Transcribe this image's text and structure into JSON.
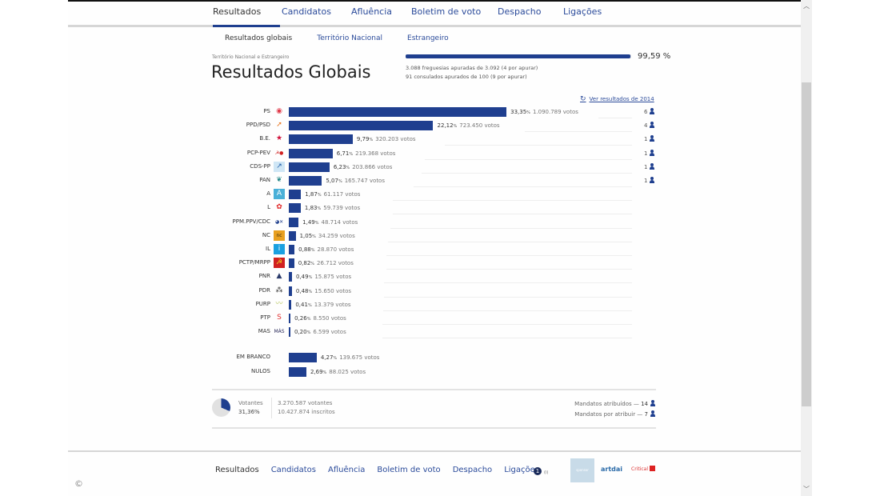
{
  "nav": {
    "tabs": [
      {
        "label": "Resultados",
        "active": true
      },
      {
        "label": "Candidatos"
      },
      {
        "label": "Afluência"
      },
      {
        "label": "Boletim de voto"
      },
      {
        "label": "Despacho"
      },
      {
        "label": "Ligações"
      }
    ]
  },
  "subnav": {
    "items": [
      {
        "label": "Resultados globais",
        "active": true
      },
      {
        "label": "Território Nacional"
      },
      {
        "label": "Estrangeiro"
      }
    ]
  },
  "header": {
    "region": "Território Nacional e Estrangeiro",
    "title": "Resultados Globais",
    "progress_pct": "99,59 %",
    "progress_value": 99.59,
    "freguesias": "3.088 freguesias apuradas de 3.092 (4 por apurar)",
    "consulados": "91 consulados apurados de 100 (9 por apurar)",
    "ver_link": "Ver resultados de 2014",
    "history_icon": "↻"
  },
  "chart_data": {
    "type": "bar",
    "title": "Resultados Globais",
    "orientation": "horizontal",
    "categories": [
      "PS",
      "PPD/PSD",
      "B.E.",
      "PCP-PEV",
      "CDS-PP",
      "PAN",
      "A",
      "L",
      "PPM.PPV/CDC",
      "NC",
      "IL",
      "PCTP/MRPP",
      "PNR",
      "PDR",
      "PURP",
      "PTP",
      "MAS",
      "EM BRANCO",
      "NULOS"
    ],
    "series": [
      {
        "name": "Percentagem (%)",
        "values": [
          33.35,
          22.12,
          9.79,
          6.71,
          6.23,
          5.07,
          1.87,
          1.83,
          1.49,
          1.05,
          0.88,
          0.82,
          0.49,
          0.48,
          0.41,
          0.26,
          0.2,
          4.27,
          2.69
        ]
      },
      {
        "name": "Votos",
        "values": [
          1090789,
          723450,
          320203,
          219368,
          203866,
          165747,
          61117,
          59739,
          48714,
          34259,
          28870,
          26712,
          15875,
          15650,
          13379,
          8550,
          6599,
          139675,
          88025
        ]
      },
      {
        "name": "Mandatos",
        "values": [
          6,
          4,
          1,
          1,
          1,
          1,
          null,
          null,
          null,
          null,
          null,
          null,
          null,
          null,
          null,
          null,
          null,
          null,
          null
        ]
      }
    ],
    "xlabel": "",
    "ylabel": ""
  },
  "parties": [
    {
      "name": "PS",
      "pct": "33,35",
      "votes": "1.090.789 votos",
      "value": 33.35,
      "seats": "6",
      "logo": "◉",
      "logo_color": "#e03a4a",
      "logo_bg": "transparent"
    },
    {
      "name": "PPD/PSD",
      "pct": "22,12",
      "votes": "723.450 votos",
      "value": 22.12,
      "seats": "4",
      "logo": "➚",
      "logo_color": "#e8731a",
      "logo_bg": "transparent"
    },
    {
      "name": "B.E.",
      "pct": "9,79",
      "votes": "320.203 votos",
      "value": 9.79,
      "seats": "1",
      "logo": "★",
      "logo_color": "#d0103a",
      "logo_bg": "transparent"
    },
    {
      "name": "PCP-PEV",
      "pct": "6,71",
      "votes": "219.368 votos",
      "value": 6.71,
      "seats": "1",
      "logo": "☭●",
      "logo_color": "#d02020",
      "logo_bg": "transparent"
    },
    {
      "name": "CDS-PP",
      "pct": "6,23",
      "votes": "203.866 votos",
      "value": 6.23,
      "seats": "1",
      "logo": "↗",
      "logo_color": "#1a5aa8",
      "logo_bg": "#cfe6f5"
    },
    {
      "name": "PAN",
      "pct": "5,07",
      "votes": "165.747 votos",
      "value": 5.07,
      "seats": "1",
      "logo": "❦",
      "logo_color": "#2a8a8a",
      "logo_bg": "transparent"
    },
    {
      "name": "A",
      "pct": "1,87",
      "votes": "61.117 votos",
      "value": 1.87,
      "seats": "",
      "logo": "A",
      "logo_color": "#ffffff",
      "logo_bg": "#4ab0d8"
    },
    {
      "name": "L",
      "pct": "1,83",
      "votes": "59.739 votos",
      "value": 1.83,
      "seats": "",
      "logo": "✿",
      "logo_color": "#e02020",
      "logo_bg": "transparent"
    },
    {
      "name": "PPM.PPV/CDC",
      "pct": "1,49",
      "votes": "48.714 votos",
      "value": 1.49,
      "seats": "",
      "logo": "◕✕",
      "logo_color": "#1a3a8a",
      "logo_bg": "transparent"
    },
    {
      "name": "NC",
      "pct": "1,05",
      "votes": "34.259 votos",
      "value": 1.05,
      "seats": "",
      "logo": "nc",
      "logo_color": "#3a2a10",
      "logo_bg": "#e8a020"
    },
    {
      "name": "IL",
      "pct": "0,88",
      "votes": "28.870 votos",
      "value": 0.88,
      "seats": "",
      "logo": "i",
      "logo_color": "#ffffff",
      "logo_bg": "#1aa0e0"
    },
    {
      "name": "PCTP/MRPP",
      "pct": "0,82",
      "votes": "26.712 votos",
      "value": 0.82,
      "seats": "",
      "logo": "☭",
      "logo_color": "#f0d020",
      "logo_bg": "#d02020"
    },
    {
      "name": "PNR",
      "pct": "0,49",
      "votes": "15.875 votos",
      "value": 0.49,
      "seats": "",
      "logo": "▲",
      "logo_color": "#2a3a6a",
      "logo_bg": "transparent"
    },
    {
      "name": "PDR",
      "pct": "0,48",
      "votes": "15.650 votos",
      "value": 0.48,
      "seats": "",
      "logo": "⁂",
      "logo_color": "#222222",
      "logo_bg": "transparent"
    },
    {
      "name": "PURP",
      "pct": "0,41",
      "votes": "13.379 votos",
      "value": 0.41,
      "seats": "",
      "logo": "〰",
      "logo_color": "#b8c860",
      "logo_bg": "transparent"
    },
    {
      "name": "PTP",
      "pct": "0,26",
      "votes": "8.550 votos",
      "value": 0.26,
      "seats": "",
      "logo": "S",
      "logo_color": "#e03030",
      "logo_bg": "transparent"
    },
    {
      "name": "MAS",
      "pct": "0,20",
      "votes": "6.599 votos",
      "value": 0.2,
      "seats": "",
      "logo": "MÁS",
      "logo_color": "#2a2a5a",
      "logo_bg": "transparent"
    }
  ],
  "others": [
    {
      "name": "EM BRANCO",
      "pct": "4,27",
      "votes": "139.675 votos",
      "value": 4.27
    },
    {
      "name": "NULOS",
      "pct": "2,69",
      "votes": "88.025 votos",
      "value": 2.69
    }
  ],
  "pct_symbol": "%",
  "summary": {
    "votantes_label": "Votantes",
    "votantes_pct": "31,36%",
    "votantes_value": 31.36,
    "votantes_count": "3.270.587 votantes",
    "inscritos_count": "10.427.874 inscritos",
    "mandatos_atribuidos_label": "Mandatos atribuídos",
    "mandatos_atribuidos": "14",
    "mandatos_por_atribuir_label": "Mandatos por atribuir",
    "mandatos_por_atribuir": "7"
  },
  "footer": {
    "links": [
      {
        "label": "Resultados",
        "active": true
      },
      {
        "label": "Candidatos"
      },
      {
        "label": "Afluência"
      },
      {
        "label": "Boletim de voto"
      },
      {
        "label": "Despacho"
      },
      {
        "label": "Ligações"
      }
    ],
    "tv_logo": "1",
    "tv_sub": "(i)",
    "sponsor1": "sponsor",
    "sponsor2": "artdai",
    "sponsor3": "Critical"
  },
  "copyright_icon": "©",
  "colors": {
    "accent": "#1f3f8f",
    "link": "#2a4a9a"
  }
}
